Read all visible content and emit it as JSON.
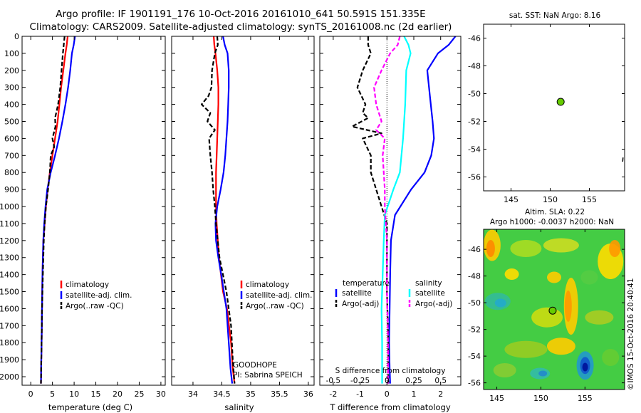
{
  "header": {
    "line1": "Argo profile: IF 1901191_176 10-Oct-2016 20161010_641 50.591S 151.335E",
    "line2": "Climatology: CARS2009. Satellite-adjusted climatology: synTS_20161008.nc (2d earlier)"
  },
  "watermark": "©IMOS 15-Oct-2016 20:40:41",
  "colors": {
    "climatology": "#ff0000",
    "satellite": "#0000ff",
    "argo": "#000000",
    "satellite_salinity": "#00ffff",
    "argo_salinity": "#ff00ff",
    "marker": "#66cc00"
  },
  "chart_data": [
    {
      "id": "temperature",
      "type": "line",
      "xlabel": "temperature (deg C)",
      "ylabel": "",
      "xlim": [
        -2,
        31
      ],
      "ylim": [
        0,
        2050
      ],
      "y_inverted": true,
      "xticks": [
        0,
        5,
        10,
        15,
        20,
        25,
        30
      ],
      "yticks": [
        0,
        100,
        200,
        300,
        400,
        500,
        600,
        700,
        800,
        900,
        1000,
        1100,
        1200,
        1300,
        1400,
        1500,
        1600,
        1700,
        1800,
        1900,
        2000
      ],
      "legend": [
        "climatology",
        "satellite-adj. clim.",
        "Argo(..raw -QC)"
      ],
      "series": [
        {
          "name": "climatology",
          "color": "#ff0000",
          "dash": false,
          "x": [
            8.5,
            8.3,
            8.0,
            7.5,
            7.0,
            6.6,
            6.2,
            5.6,
            5.0,
            4.4,
            3.9,
            3.5,
            3.2,
            2.9,
            2.7,
            2.6,
            2.5,
            2.4,
            2.35
          ],
          "y": [
            0,
            50,
            100,
            200,
            300,
            400,
            500,
            600,
            700,
            800,
            900,
            1000,
            1100,
            1200,
            1400,
            1600,
            1800,
            1950,
            2040
          ]
        },
        {
          "name": "satellite-adj. clim.",
          "color": "#0000ff",
          "dash": false,
          "x": [
            10.2,
            9.9,
            9.5,
            9.1,
            8.6,
            8.0,
            7.3,
            6.5,
            5.6,
            4.6,
            3.8,
            3.4,
            3.1,
            2.9,
            2.7,
            2.6,
            2.5,
            2.4,
            2.35
          ],
          "y": [
            0,
            50,
            100,
            200,
            300,
            400,
            500,
            600,
            700,
            800,
            900,
            1000,
            1100,
            1200,
            1400,
            1600,
            1800,
            1950,
            2040
          ]
        },
        {
          "name": "Argo(..raw -QC)",
          "color": "#000000",
          "dash": true,
          "x": [
            7.8,
            7.6,
            7.4,
            7.1,
            6.8,
            6.3,
            5.6,
            5.7,
            5.0,
            5.4,
            4.6,
            4.4,
            4.0,
            3.5,
            3.2,
            3.0,
            2.8,
            2.6,
            2.5,
            2.4,
            2.35
          ],
          "y": [
            0,
            50,
            100,
            200,
            300,
            400,
            480,
            530,
            600,
            650,
            700,
            800,
            900,
            1000,
            1100,
            1200,
            1400,
            1600,
            1800,
            1950,
            2040
          ]
        }
      ]
    },
    {
      "id": "salinity",
      "type": "line",
      "xlabel": "salinity",
      "ylabel": "",
      "xlim": [
        33.63,
        36.1
      ],
      "ylim": [
        0,
        2050
      ],
      "y_inverted": true,
      "xticks": [
        34,
        34.5,
        35,
        35.5,
        36
      ],
      "xticklabels": [
        "34",
        "34.5",
        "35",
        "35.5",
        "36"
      ],
      "legend": [
        "climatology",
        "satellite-adj. clim.",
        "Argo(..raw -QC)"
      ],
      "annotations": [
        "GOODHOPE",
        "PI: Sabrina SPEICH"
      ],
      "series": [
        {
          "name": "climatology",
          "color": "#ff0000",
          "dash": false,
          "x": [
            34.36,
            34.37,
            34.39,
            34.42,
            34.44,
            34.44,
            34.43,
            34.42,
            34.41,
            34.4,
            34.4,
            34.4,
            34.41,
            34.45,
            34.52,
            34.59,
            34.66,
            34.69,
            34.72
          ],
          "y": [
            0,
            50,
            100,
            200,
            300,
            400,
            500,
            600,
            700,
            800,
            900,
            1000,
            1100,
            1300,
            1500,
            1600,
            1800,
            1950,
            2040
          ]
        },
        {
          "name": "satellite-adj. clim.",
          "color": "#0000ff",
          "dash": false,
          "x": [
            34.52,
            34.55,
            34.6,
            34.62,
            34.62,
            34.61,
            34.6,
            34.58,
            34.56,
            34.53,
            34.48,
            34.42,
            34.39,
            34.4,
            34.44,
            34.49,
            34.58,
            34.62,
            34.65,
            34.68
          ],
          "y": [
            0,
            50,
            100,
            200,
            300,
            400,
            500,
            600,
            700,
            800,
            900,
            1000,
            1100,
            1200,
            1300,
            1400,
            1600,
            1800,
            1950,
            2040
          ]
        },
        {
          "name": "Argo(..raw -QC)",
          "color": "#000000",
          "dash": true,
          "x": [
            34.42,
            34.43,
            34.38,
            34.33,
            34.32,
            34.27,
            34.15,
            34.3,
            34.25,
            34.38,
            34.28,
            34.3,
            34.33,
            34.35,
            34.38,
            34.4,
            34.46,
            34.58,
            34.66,
            34.69,
            34.72
          ],
          "y": [
            0,
            50,
            100,
            200,
            300,
            350,
            400,
            450,
            500,
            550,
            600,
            700,
            800,
            900,
            1000,
            1100,
            1300,
            1500,
            1700,
            1900,
            2040
          ]
        }
      ]
    },
    {
      "id": "difference",
      "type": "line",
      "xlabel": "T difference from climatology",
      "x2label": "S difference from climatology",
      "xlim": [
        -2.5,
        2.75
      ],
      "x2lim": [
        -0.625,
        0.6875
      ],
      "ylim": [
        0,
        2050
      ],
      "y_inverted": true,
      "xticks": [
        -2,
        -1,
        0,
        1,
        2
      ],
      "x2ticks": [
        -0.5,
        -0.25,
        0,
        0.25,
        0.5
      ],
      "x2ticklabels": [
        "-0.5",
        "-0.25",
        "0",
        "0.25",
        "0.5"
      ],
      "legend_titles": [
        "temperature",
        "salinity"
      ],
      "legend": [
        "satellite",
        "Argo(-adj)",
        "satellite",
        "Argo(-adj)"
      ],
      "series": [
        {
          "name": "temperature satellite",
          "axis": "T",
          "color": "#0000ff",
          "dash": false,
          "x": [
            2.55,
            2.3,
            1.9,
            1.5,
            1.6,
            1.7,
            1.75,
            1.65,
            1.4,
            0.9,
            0.3,
            0.15,
            0.12,
            0.1,
            0.08,
            0.1,
            0.12
          ],
          "y": [
            0,
            50,
            100,
            200,
            350,
            500,
            600,
            700,
            800,
            900,
            1050,
            1200,
            1400,
            1600,
            1800,
            1950,
            2040
          ]
        },
        {
          "name": "temperature Argo(-adj)",
          "axis": "T",
          "color": "#000000",
          "dash": true,
          "x": [
            -0.7,
            -0.7,
            -0.6,
            -0.9,
            -1.1,
            -0.8,
            -0.9,
            -0.7,
            -1.3,
            -0.2,
            -0.9,
            -0.6,
            -0.6,
            -0.4,
            -0.2,
            0.0,
            0.0,
            0.0,
            0.05,
            0.05
          ],
          "y": [
            0,
            50,
            100,
            200,
            300,
            400,
            450,
            480,
            530,
            570,
            600,
            700,
            800,
            900,
            1000,
            1100,
            1300,
            1500,
            1800,
            2040
          ]
        },
        {
          "name": "salinity satellite",
          "axis": "S",
          "color": "#00ffff",
          "dash": false,
          "x": [
            0.16,
            0.2,
            0.22,
            0.18,
            0.17,
            0.15,
            0.12,
            0.06,
            -0.02,
            -0.03,
            -0.04,
            -0.05,
            -0.045,
            -0.045
          ],
          "y": [
            0,
            50,
            100,
            200,
            400,
            600,
            800,
            900,
            1050,
            1200,
            1400,
            1600,
            1800,
            2040
          ]
        },
        {
          "name": "salinity Argo(-adj)",
          "axis": "S",
          "color": "#ff00ff",
          "dash": true,
          "x": [
            0.12,
            0.1,
            0.03,
            -0.05,
            -0.12,
            -0.1,
            -0.05,
            -0.1,
            -0.02,
            -0.04,
            -0.03,
            -0.02,
            -0.02,
            0.0,
            0.0,
            0.01,
            0.01
          ],
          "y": [
            0,
            50,
            100,
            200,
            300,
            400,
            500,
            550,
            600,
            700,
            800,
            900,
            1000,
            1200,
            1500,
            1800,
            2040
          ]
        }
      ]
    },
    {
      "id": "sst_map",
      "type": "scatter",
      "title": "sat. SST: NaN Argo: 8.16",
      "xlim": [
        141.5,
        159.5
      ],
      "ylim": [
        -57,
        -45
      ],
      "xticks": [
        145,
        150,
        155
      ],
      "yticks": [
        -46,
        -48,
        -50,
        -52,
        -54,
        -56
      ],
      "points": [
        {
          "x": 151.335,
          "y": -50.591
        }
      ]
    },
    {
      "id": "sla_map",
      "type": "heatmap",
      "title": "Altim. SLA: 0.22",
      "subtitle": "Argo h1000: -0.0037 h2000: NaN",
      "xlim": [
        143.5,
        159.5
      ],
      "ylim": [
        -56.5,
        -44.5
      ],
      "xticks": [
        145,
        150,
        155
      ],
      "yticks": [
        -46,
        -48,
        -50,
        -52,
        -54,
        -56
      ],
      "points": [
        {
          "x": 151.335,
          "y": -50.591
        }
      ]
    }
  ]
}
